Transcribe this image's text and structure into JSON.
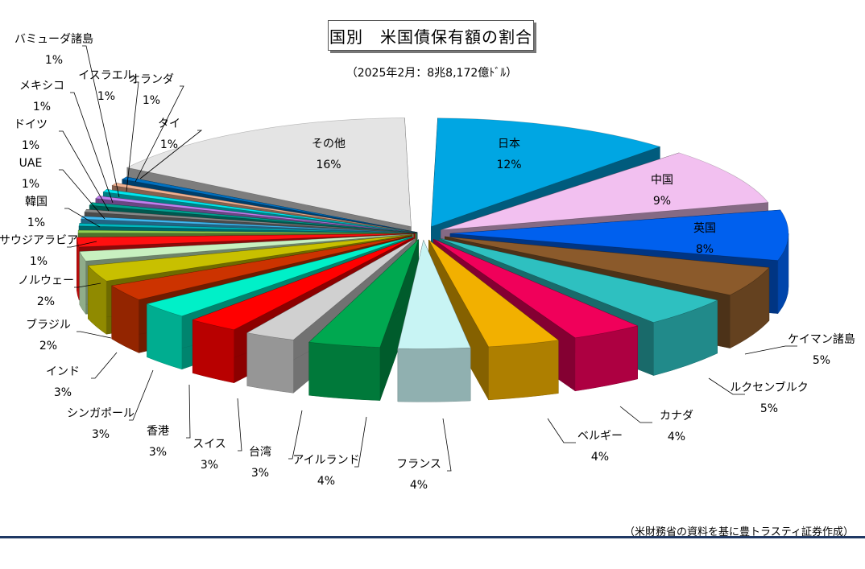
{
  "chart_data": {
    "type": "pie",
    "title": "国別　米国債保有額の割合",
    "subtitle": "（2025年2月：8兆8,172億ﾄﾞﾙ）",
    "source": "（米財務省の資料を基に豊トラスティ証券作成）",
    "slices": [
      {
        "label": "日本",
        "value_label": "12%",
        "value": 12,
        "color": "#00a6e3"
      },
      {
        "label": "中国",
        "value_label": "9%",
        "value": 9,
        "color": "#f2c0f0"
      },
      {
        "label": "英国",
        "value_label": "8%",
        "value": 8,
        "color": "#0060ee"
      },
      {
        "label": "ケイマン諸島",
        "value_label": "5%",
        "value": 5,
        "color": "#8b5a2b"
      },
      {
        "label": "ルクセンブルク",
        "value_label": "5%",
        "value": 5,
        "color": "#2ec0c0"
      },
      {
        "label": "カナダ",
        "value_label": "4%",
        "value": 4,
        "color": "#f0005a"
      },
      {
        "label": "ベルギー",
        "value_label": "4%",
        "value": 4,
        "color": "#f2b000"
      },
      {
        "label": "フランス",
        "value_label": "4%",
        "value": 4,
        "color": "#c8f4f4"
      },
      {
        "label": "アイルランド",
        "value_label": "4%",
        "value": 4,
        "color": "#00a850"
      },
      {
        "label": "台湾",
        "value_label": "3%",
        "value": 3,
        "color": "#d0d0d0"
      },
      {
        "label": "スイス",
        "value_label": "3%",
        "value": 3,
        "color": "#ff0000"
      },
      {
        "label": "香港",
        "value_label": "3%",
        "value": 3,
        "color": "#00f0c8"
      },
      {
        "label": "シンガポール",
        "value_label": "3%",
        "value": 3,
        "color": "#cc3300"
      },
      {
        "label": "インド",
        "value_label": "3%",
        "value": 3,
        "color": "#c8c000"
      },
      {
        "label": "ブラジル",
        "value_label": "2%",
        "value": 2,
        "color": "#c8f0c0"
      },
      {
        "label": "ノルウェー",
        "value_label": "2%",
        "value": 2,
        "color": "#ff1010"
      },
      {
        "label": "サウジアラビア",
        "value_label": "1%",
        "value": 1,
        "color": "#90d050"
      },
      {
        "label": "韓国",
        "value_label": "1%",
        "value": 1,
        "color": "#00b8c0"
      },
      {
        "label": "UAE",
        "value_label": "1%",
        "value": 1,
        "color": "#40b8f0"
      },
      {
        "label": "ドイツ",
        "value_label": "1%",
        "value": 1,
        "color": "#888888"
      },
      {
        "label": "メキシコ",
        "value_label": "1%",
        "value": 1,
        "color": "#00a090"
      },
      {
        "label": "イスラエル",
        "value_label": "1%",
        "value": 1,
        "color": "#c080f0"
      },
      {
        "label": "バミューダ諸島",
        "value_label": "1%",
        "value": 1,
        "color": "#00e8f0"
      },
      {
        "label": "オランダ",
        "value_label": "1%",
        "value": 1,
        "color": "#f0b090"
      },
      {
        "label": "タイ",
        "value_label": "1%",
        "value": 1,
        "color": "#0070c0"
      },
      {
        "label": "その他",
        "value_label": "16%",
        "value": 16,
        "color": "#e4e4e4"
      }
    ]
  }
}
